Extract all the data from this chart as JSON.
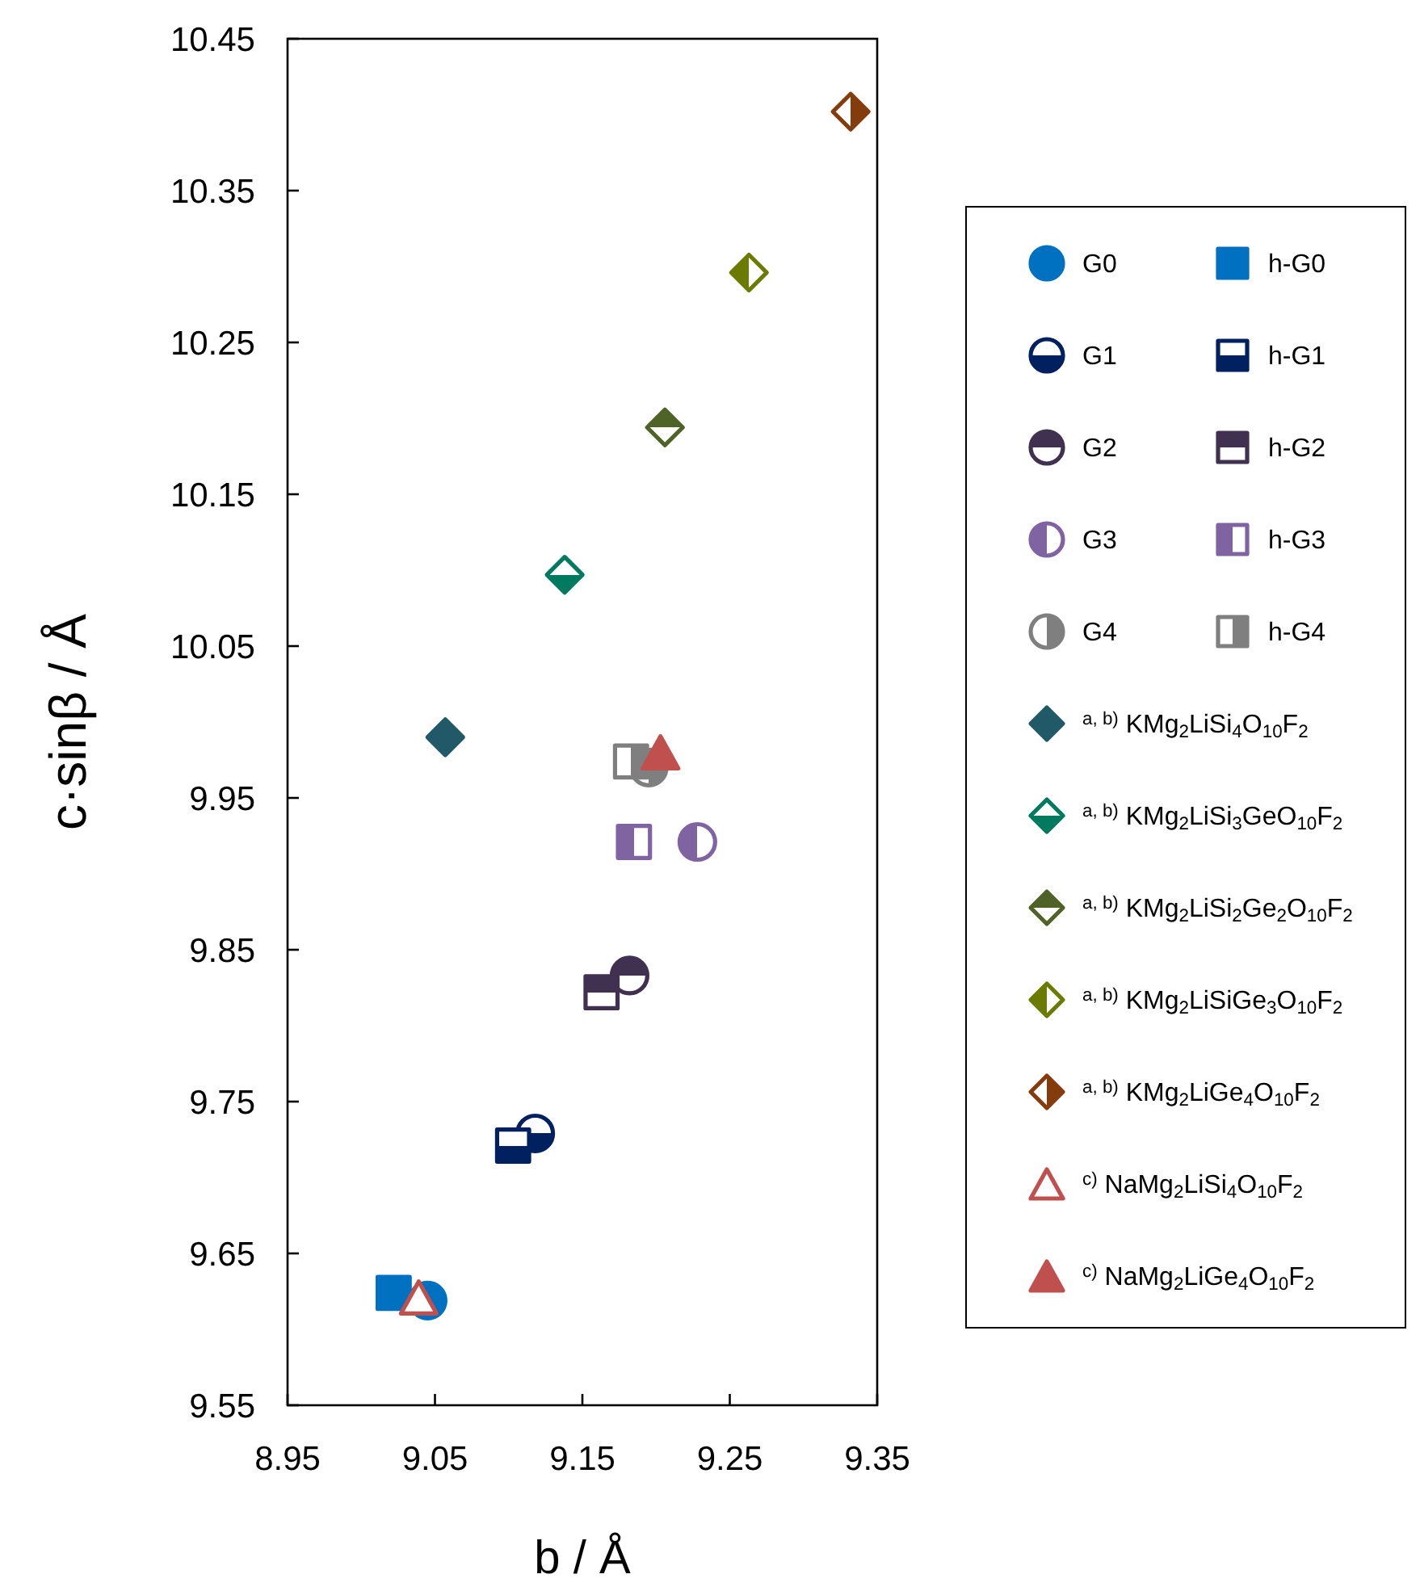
{
  "chart_data": {
    "type": "scatter",
    "xlabel": "b / Å",
    "ylabel": "c·sinβ / Å",
    "xlim": [
      8.95,
      9.35
    ],
    "xticks": [
      8.95,
      9.05,
      9.15,
      9.25,
      9.35
    ],
    "ylim": [
      9.55,
      10.45
    ],
    "yticks": [
      9.55,
      9.65,
      9.75,
      9.85,
      9.95,
      10.05,
      10.15,
      10.25,
      10.35,
      10.45
    ],
    "legend": "right",
    "series": [
      {
        "name": "G0",
        "color": "#0070c0",
        "marker": "circle",
        "x": [
          9.045
        ],
        "values": [
          9.619
        ]
      },
      {
        "name": "h-G0",
        "color": "#0070c0",
        "marker": "square",
        "x": [
          9.022
        ],
        "values": [
          9.624
        ]
      },
      {
        "name": "G1",
        "color": "#002060",
        "marker": "circle",
        "x": [
          9.118
        ],
        "values": [
          9.729
        ]
      },
      {
        "name": "h-G1",
        "color": "#002060",
        "marker": "square",
        "x": [
          9.103
        ],
        "values": [
          9.721
        ]
      },
      {
        "name": "G2",
        "color": "#403151",
        "marker": "circle",
        "x": [
          9.182
        ],
        "values": [
          9.833
        ]
      },
      {
        "name": "h-G2",
        "color": "#403151",
        "marker": "square",
        "x": [
          9.163
        ],
        "values": [
          9.822
        ]
      },
      {
        "name": "G3",
        "color": "#8064a2",
        "marker": "circle",
        "x": [
          9.228
        ],
        "values": [
          9.921
        ]
      },
      {
        "name": "h-G3",
        "color": "#8064a2",
        "marker": "square",
        "x": [
          9.185
        ],
        "values": [
          9.921
        ]
      },
      {
        "name": "G4",
        "color": "#7f7f7f",
        "marker": "circle",
        "x": [
          9.195
        ],
        "values": [
          9.97
        ]
      },
      {
        "name": "h-G4",
        "color": "#7f7f7f",
        "marker": "square",
        "x": [
          9.183
        ],
        "values": [
          9.974
        ]
      },
      {
        "name": "$^{a, b)}$ KMg$_{2}$LiSi$_{4}$O$_{10}$F$_{2}$",
        "color": "#215968",
        "marker": "diamond",
        "x": [
          9.057
        ],
        "values": [
          9.99
        ]
      },
      {
        "name": "$^{a, b)}$ KMg$_{2}$LiSi$_{3}$GeO$_{10}$F$_{2}$",
        "color": "#007a5e",
        "marker": "diamond",
        "x": [
          9.138
        ],
        "values": [
          10.097
        ]
      },
      {
        "name": "$^{a, b)}$ KMg$_{2}$LiSi$_{2}$Ge$_{2}$O$_{10}$F$_{2}$",
        "color": "#4f6228",
        "marker": "diamond",
        "x": [
          9.206
        ],
        "values": [
          10.194
        ]
      },
      {
        "name": "$^{a, b)}$ KMg$_{2}$LiSiGe$_{3}$O$_{10}$F$_{2}$",
        "color": "#6b7a00",
        "marker": "diamond",
        "x": [
          9.263
        ],
        "values": [
          10.296
        ]
      },
      {
        "name": "$^{a, b)}$ KMg$_{2}$LiGe$_{4}$O$_{10}$F$_{2}$",
        "color": "#843c0c",
        "marker": "diamond",
        "x": [
          9.332
        ],
        "values": [
          10.402
        ]
      },
      {
        "name": "$^{c)}$ NaMg$_{2}$LiSi$_{4}$O$_{10}$F$_{2}$",
        "color": "#c0504d",
        "marker": "triangle",
        "x": [
          9.039
        ],
        "values": [
          9.621
        ]
      },
      {
        "name": "$^{c)}$ NaMg$_{2}$LiGe$_{4}$O$_{10}$F$_{2}$",
        "color": "#c0504d",
        "marker": "triangle",
        "x": [
          9.203
        ],
        "values": [
          9.98
        ]
      }
    ]
  }
}
